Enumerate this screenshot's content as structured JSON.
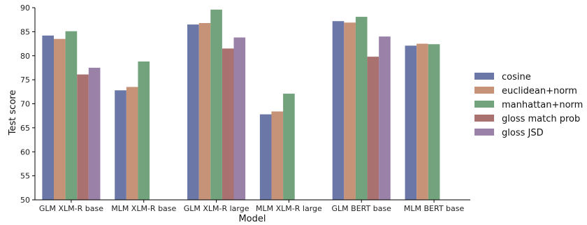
{
  "chart_data": {
    "type": "bar",
    "title": "",
    "xlabel": "Model",
    "ylabel": "Test score",
    "ylim": [
      50,
      90
    ],
    "yticks": [
      50,
      55,
      60,
      65,
      70,
      75,
      80,
      85,
      90
    ],
    "grid": false,
    "legend_position": "right",
    "categories": [
      "GLM XLM-R base",
      "MLM XLM-R base",
      "GLM XLM-R large",
      "MLM XLM-R large",
      "GLM BERT base",
      "MLM BERT base"
    ],
    "series": [
      {
        "name": "cosine",
        "color": "#6a77a7",
        "values": [
          84.2,
          72.8,
          86.5,
          67.8,
          87.2,
          82.1
        ]
      },
      {
        "name": "euclidean+norm",
        "color": "#c69378",
        "values": [
          83.5,
          73.5,
          86.8,
          68.4,
          86.9,
          82.5
        ]
      },
      {
        "name": "manhattan+norm",
        "color": "#72a37c",
        "values": [
          85.1,
          78.8,
          89.6,
          72.1,
          88.1,
          82.4
        ]
      },
      {
        "name": "gloss match prob",
        "color": "#a9716f",
        "values": [
          76.1,
          null,
          81.5,
          null,
          79.8,
          null
        ]
      },
      {
        "name": "gloss JSD",
        "color": "#9981a8",
        "values": [
          77.5,
          null,
          83.8,
          null,
          84.0,
          null
        ]
      }
    ]
  }
}
